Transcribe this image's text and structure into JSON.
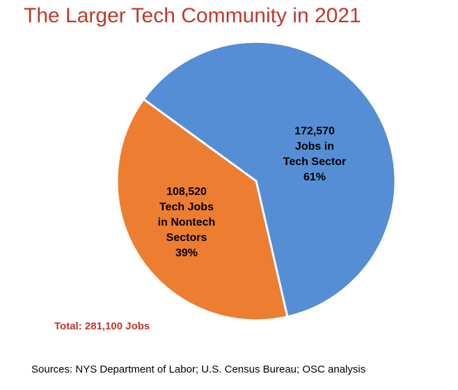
{
  "chart_data": {
    "type": "pie",
    "title": "The Larger Tech Community in 2021",
    "slices": [
      {
        "value": 172570,
        "percent": 61,
        "color": "#558ed5",
        "label_lines": [
          "172,570",
          "Jobs in",
          "Tech Sector",
          "61%"
        ]
      },
      {
        "value": 108520,
        "percent": 39,
        "color": "#ed7d31",
        "label_lines": [
          "108,520",
          "Tech Jobs",
          "in Nontech",
          "Sectors",
          "39%"
        ]
      }
    ],
    "total_label": "Total: 281,100 Jobs",
    "source": "Sources: NYS Department of Labor; U.S. Census Bureau; OSC analysis"
  }
}
